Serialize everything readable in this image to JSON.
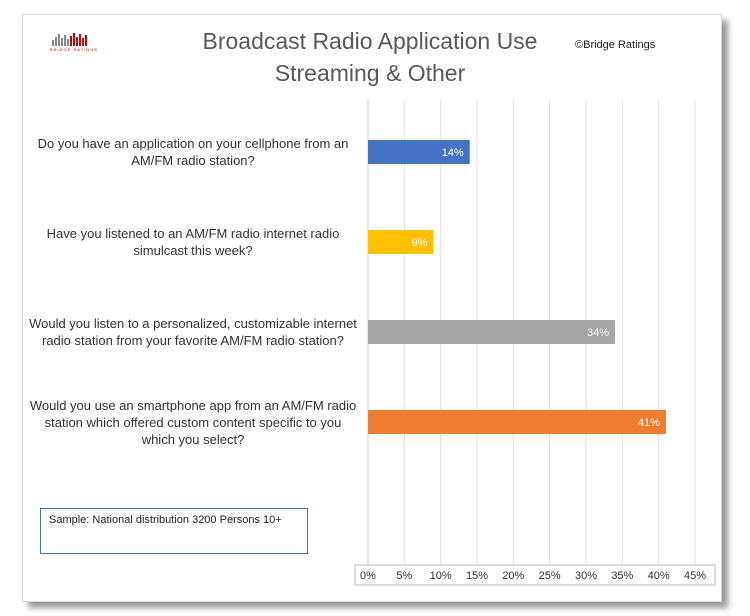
{
  "chart_data": {
    "type": "barh",
    "title": "Broadcast Radio Application Use",
    "subtitle": "Streaming & Other",
    "logo": "BRIDGE RATINGS",
    "copyright": "©Bridge Ratings",
    "note": "Sample: National distribution 3200 Persons 10+",
    "categories": [
      "Do you have an application on your cellphone from an AM/FM radio station?",
      "Have you listened to an AM/FM radio internet radio simulcast this week?",
      "Would you listen to a personalized, customizable internet radio station from your favorite AM/FM radio station?",
      "Would you use an smartphone app from an AM/FM radio station which offered custom content specific to you which you select?"
    ],
    "values": [
      14,
      9,
      34,
      41
    ],
    "value_labels": [
      "14%",
      "9%",
      "34%",
      "41%"
    ],
    "colors": [
      "#4472c4",
      "#ffc000",
      "#a5a5a5",
      "#ed7d31"
    ],
    "xlim": [
      0,
      45
    ],
    "xticks": [
      {
        "value": 0,
        "label": "0%"
      },
      {
        "value": 5,
        "label": "5%"
      },
      {
        "value": 10,
        "label": "10%"
      },
      {
        "value": 15,
        "label": "15%"
      },
      {
        "value": 20,
        "label": "20%"
      },
      {
        "value": 25,
        "label": "25%"
      },
      {
        "value": 30,
        "label": "30%"
      },
      {
        "value": 35,
        "label": "35%"
      },
      {
        "value": 40,
        "label": "40%"
      },
      {
        "value": 45,
        "label": "45%"
      }
    ],
    "grid": true
  }
}
